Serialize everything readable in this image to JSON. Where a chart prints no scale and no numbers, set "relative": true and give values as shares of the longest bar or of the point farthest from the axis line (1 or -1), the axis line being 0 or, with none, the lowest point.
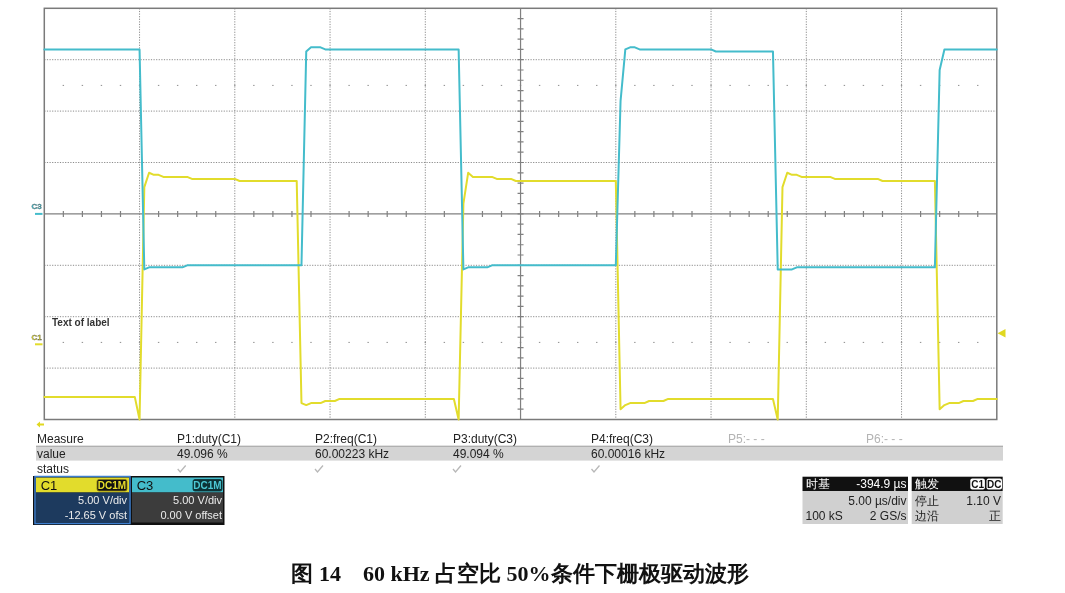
{
  "chart_data": {
    "type": "line",
    "relative": true,
    "grid": true,
    "title": "图 14　60 kHz 占空比 50%条件下栅极驱动波形",
    "categories": [
      null,
      null,
      null,
      null,
      null,
      null,
      null,
      null,
      null,
      null,
      null,
      null,
      null,
      null,
      null,
      null,
      null,
      null,
      null,
      null,
      null,
      null,
      null,
      null,
      null,
      null,
      null,
      null,
      null,
      null,
      null,
      null,
      null,
      null,
      null,
      null,
      null,
      null,
      null,
      null,
      null,
      null,
      null,
      null,
      null,
      null,
      null,
      null,
      null,
      null,
      null,
      null,
      null,
      null,
      null,
      null,
      null,
      null,
      null,
      null,
      null,
      null,
      null,
      null,
      null,
      null,
      null,
      null,
      null,
      null,
      null,
      null,
      null,
      null,
      null,
      null,
      null,
      null,
      null,
      null,
      null,
      null,
      null,
      null,
      null,
      null,
      null,
      null,
      null,
      null,
      null,
      null,
      null,
      null,
      null,
      null,
      null,
      null,
      null,
      null,
      null,
      null,
      null,
      null,
      null,
      null,
      null,
      null,
      null,
      null,
      null,
      null,
      null,
      null,
      null,
      null,
      null,
      null,
      null,
      null,
      null,
      null,
      null,
      null,
      null,
      null,
      null,
      null,
      null,
      null,
      null,
      null,
      null,
      null,
      null,
      null,
      null,
      null,
      null,
      null,
      null,
      null,
      null,
      null,
      null,
      null,
      null,
      null,
      null,
      null,
      null,
      null,
      null,
      null,
      null,
      null,
      null,
      null,
      null,
      null,
      null,
      null,
      null,
      null,
      null,
      null,
      null,
      null,
      null,
      null,
      null,
      null,
      null,
      null,
      null,
      null,
      null,
      null,
      null,
      null,
      null,
      null,
      null,
      null,
      null,
      null,
      null,
      null,
      null,
      null,
      null,
      null,
      null,
      null,
      null,
      null,
      null,
      null,
      null,
      null,
      null
    ],
    "series": [
      {
        "name": "C1",
        "color": "#e2dc2c",
        "values": [
          -0.89,
          -0.89,
          -0.89,
          -0.89,
          -0.89,
          -0.89,
          -0.89,
          -0.89,
          -0.89,
          -0.89,
          -0.89,
          -0.89,
          -0.89,
          -0.89,
          -0.89,
          -0.89,
          -0.89,
          -0.89,
          -0.89,
          -0.89,
          -1,
          0.13,
          0.2,
          0.19,
          0.19,
          0.18,
          0.18,
          0.18,
          0.18,
          0.18,
          0.18,
          0.17,
          0.17,
          0.17,
          0.17,
          0.17,
          0.17,
          0.17,
          0.17,
          0.17,
          0.17,
          0.16,
          0.16,
          0.16,
          0.16,
          0.16,
          0.16,
          0.16,
          0.16,
          0.16,
          0.16,
          0.16,
          0.16,
          0.16,
          -0.92,
          -0.93,
          -0.92,
          -0.92,
          -0.92,
          -0.91,
          -0.91,
          -0.91,
          -0.9,
          -0.9,
          -0.9,
          -0.9,
          -0.9,
          -0.9,
          -0.9,
          -0.9,
          -0.9,
          -0.9,
          -0.9,
          -0.9,
          -0.9,
          -0.9,
          -0.9,
          -0.9,
          -0.9,
          -0.9,
          -0.9,
          -0.9,
          -0.9,
          -0.9,
          -0.9,
          -0.9,
          -0.9,
          -1,
          0.05,
          0.2,
          0.18,
          0.18,
          0.18,
          0.18,
          0.18,
          0.17,
          0.17,
          0.17,
          0.17,
          0.16,
          0.16,
          0.16,
          0.16,
          0.16,
          0.16,
          0.16,
          0.16,
          0.16,
          0.16,
          0.16,
          0.16,
          0.16,
          0.16,
          0.16,
          0.16,
          0.16,
          0.16,
          0.16,
          0.16,
          0.16,
          0.16,
          -0.95,
          -0.93,
          -0.92,
          -0.92,
          -0.92,
          -0.92,
          -0.91,
          -0.91,
          -0.91,
          -0.91,
          -0.9,
          -0.9,
          -0.9,
          -0.9,
          -0.9,
          -0.9,
          -0.9,
          -0.9,
          -0.9,
          -0.9,
          -0.9,
          -0.9,
          -0.9,
          -0.9,
          -0.9,
          -0.9,
          -0.9,
          -0.9,
          -0.9,
          -0.9,
          -0.9,
          -0.9,
          -0.9,
          -1,
          0.13,
          0.2,
          0.19,
          0.19,
          0.18,
          0.18,
          0.18,
          0.18,
          0.18,
          0.18,
          0.18,
          0.17,
          0.17,
          0.17,
          0.17,
          0.17,
          0.17,
          0.17,
          0.17,
          0.17,
          0.17,
          0.16,
          0.16,
          0.16,
          0.16,
          0.16,
          0.16,
          0.16,
          0.16,
          0.16,
          0.16,
          0.16,
          0.16,
          -0.95,
          -0.93,
          -0.92,
          -0.92,
          -0.92,
          -0.91,
          -0.91,
          -0.91,
          -0.9,
          -0.9,
          -0.9,
          -0.9,
          -0.9
        ]
      },
      {
        "name": "C3",
        "color": "#44bccb",
        "values": [
          0.8,
          0.8,
          0.8,
          0.8,
          0.8,
          0.8,
          0.8,
          0.8,
          0.8,
          0.8,
          0.8,
          0.8,
          0.8,
          0.8,
          0.8,
          0.8,
          0.8,
          0.8,
          0.8,
          0.8,
          0.8,
          -0.27,
          -0.26,
          -0.26,
          -0.26,
          -0.26,
          -0.26,
          -0.26,
          -0.26,
          -0.26,
          -0.25,
          -0.25,
          -0.25,
          -0.25,
          -0.25,
          -0.25,
          -0.25,
          -0.25,
          -0.25,
          -0.25,
          -0.25,
          -0.25,
          -0.25,
          -0.25,
          -0.25,
          -0.25,
          -0.25,
          -0.25,
          -0.25,
          -0.25,
          -0.25,
          -0.25,
          -0.25,
          -0.25,
          -0.25,
          0.79,
          0.81,
          0.81,
          0.81,
          0.8,
          0.8,
          0.8,
          0.8,
          0.8,
          0.8,
          0.8,
          0.8,
          0.8,
          0.8,
          0.8,
          0.8,
          0.8,
          0.8,
          0.8,
          0.8,
          0.8,
          0.8,
          0.8,
          0.8,
          0.8,
          0.8,
          0.8,
          0.8,
          0.8,
          0.8,
          0.8,
          0.8,
          0.8,
          -0.27,
          -0.26,
          -0.26,
          -0.26,
          -0.26,
          -0.26,
          -0.25,
          -0.25,
          -0.25,
          -0.25,
          -0.25,
          -0.25,
          -0.25,
          -0.25,
          -0.25,
          -0.25,
          -0.25,
          -0.25,
          -0.25,
          -0.25,
          -0.25,
          -0.25,
          -0.25,
          -0.25,
          -0.25,
          -0.25,
          -0.25,
          -0.25,
          -0.25,
          -0.25,
          -0.25,
          -0.25,
          -0.25,
          0.55,
          0.8,
          0.81,
          0.81,
          0.8,
          0.8,
          0.8,
          0.8,
          0.8,
          0.8,
          0.8,
          0.8,
          0.8,
          0.8,
          0.8,
          0.8,
          0.8,
          0.8,
          0.8,
          0.8,
          0.79,
          0.79,
          0.79,
          0.79,
          0.79,
          0.79,
          0.79,
          0.79,
          0.79,
          0.79,
          0.79,
          0.79,
          0.79,
          -0.27,
          -0.27,
          -0.27,
          -0.27,
          -0.26,
          -0.26,
          -0.26,
          -0.26,
          -0.26,
          -0.26,
          -0.26,
          -0.26,
          -0.26,
          -0.26,
          -0.26,
          -0.26,
          -0.26,
          -0.26,
          -0.26,
          -0.26,
          -0.26,
          -0.26,
          -0.26,
          -0.26,
          -0.26,
          -0.26,
          -0.26,
          -0.26,
          -0.26,
          -0.26,
          -0.26,
          -0.26,
          -0.26,
          -0.26,
          0.7,
          0.8,
          0.8,
          0.8,
          0.8,
          0.8,
          0.8,
          0.8,
          0.8,
          0.8,
          0.8,
          0.8,
          0.8
        ]
      }
    ],
    "annotations": [
      "Text of label",
      "Measure",
      "P1:duty(C1)",
      "P2:freq(C1)",
      "P3:duty(C3)",
      "P4:freq(C3)",
      "P5:- - -",
      "P6:- - -",
      "value",
      "49.096 %",
      "60.00223 kHz",
      "49.094 %",
      "60.00016 kHz",
      "status",
      "DC1M",
      "5.00 V/div",
      "-12.65 V ofst",
      "DC1M",
      "5.00 V/div",
      "0.00 V offset",
      "时基",
      "-394.9 µs",
      "5.00 µs/div",
      "100 kS",
      "2 GS/s",
      "触发",
      "C1",
      "DC",
      "停止",
      "1.10 V",
      "边沿",
      "正"
    ]
  }
}
